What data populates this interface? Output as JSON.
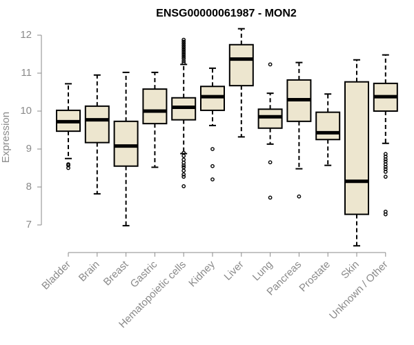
{
  "chart_data": {
    "type": "boxplot",
    "title": "ENSG00000061987 - MON2",
    "xlabel": "",
    "ylabel": "Expression",
    "ylim": [
      6.35,
      12.25
    ],
    "yticks": [
      7,
      8,
      9,
      10,
      11,
      12
    ],
    "box_fill": "#ede6cf",
    "axis_color": "#8a8a8a",
    "categories": [
      "Bladder",
      "Brain",
      "Breast",
      "Gastric",
      "Hematopoietic cells",
      "Kidney",
      "Liver",
      "Lung",
      "Pancreas",
      "Prostate",
      "Skin",
      "Unknown / Other"
    ],
    "boxes": [
      {
        "name": "Bladder",
        "whisker_low": 8.75,
        "q1": 9.47,
        "median": 9.72,
        "q3": 10.02,
        "whisker_high": 10.72,
        "outliers": [
          8.5,
          8.57,
          8.6
        ]
      },
      {
        "name": "Brain",
        "whisker_low": 7.82,
        "q1": 9.17,
        "median": 9.77,
        "q3": 10.13,
        "whisker_high": 10.95,
        "outliers": []
      },
      {
        "name": "Breast",
        "whisker_low": 6.98,
        "q1": 8.55,
        "median": 9.08,
        "q3": 9.73,
        "whisker_high": 11.02,
        "outliers": []
      },
      {
        "name": "Gastric",
        "whisker_low": 8.52,
        "q1": 9.67,
        "median": 10.0,
        "q3": 10.58,
        "whisker_high": 11.02,
        "outliers": []
      },
      {
        "name": "Hematopoietic cells",
        "whisker_low": 8.88,
        "q1": 9.77,
        "median": 10.1,
        "q3": 10.35,
        "whisker_high": 11.23,
        "outliers": [
          8.02,
          8.27,
          8.33,
          8.43,
          8.52,
          8.57,
          8.64,
          8.72,
          8.82,
          8.9,
          11.27,
          11.32,
          11.38,
          11.43,
          11.48,
          11.53,
          11.58,
          11.63,
          11.68,
          11.73,
          11.78,
          11.83,
          11.88
        ]
      },
      {
        "name": "Kidney",
        "whisker_low": 9.62,
        "q1": 10.02,
        "median": 10.38,
        "q3": 10.65,
        "whisker_high": 11.13,
        "outliers": [
          8.2,
          8.55,
          9.0
        ]
      },
      {
        "name": "Liver",
        "whisker_low": 9.32,
        "q1": 10.67,
        "median": 11.37,
        "q3": 11.75,
        "whisker_high": 12.17,
        "outliers": []
      },
      {
        "name": "Lung",
        "whisker_low": 9.13,
        "q1": 9.55,
        "median": 9.85,
        "q3": 10.05,
        "whisker_high": 10.47,
        "outliers": [
          7.72,
          8.65,
          11.23
        ]
      },
      {
        "name": "Pancreas",
        "whisker_low": 8.48,
        "q1": 9.73,
        "median": 10.3,
        "q3": 10.82,
        "whisker_high": 11.28,
        "outliers": [
          7.75
        ]
      },
      {
        "name": "Prostate",
        "whisker_low": 8.57,
        "q1": 9.25,
        "median": 9.43,
        "q3": 9.97,
        "whisker_high": 10.45,
        "outliers": []
      },
      {
        "name": "Skin",
        "whisker_low": 6.45,
        "q1": 7.28,
        "median": 8.15,
        "q3": 10.77,
        "whisker_high": 11.35,
        "outliers": []
      },
      {
        "name": "Unknown / Other",
        "whisker_low": 9.15,
        "q1": 10.0,
        "median": 10.38,
        "q3": 10.73,
        "whisker_high": 11.48,
        "outliers": [
          7.28,
          7.35,
          8.27,
          8.4,
          8.47,
          8.53,
          8.6,
          8.67,
          8.73,
          8.8,
          8.87
        ]
      }
    ]
  }
}
